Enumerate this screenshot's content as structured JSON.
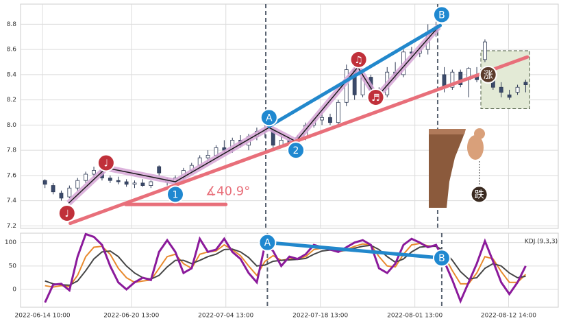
{
  "chart_data": [
    {
      "type": "candlestick",
      "xlim": [
        -3,
        63
      ],
      "xticks": [
        {
          "value": -0.3,
          "label": "2022-06-14 10:00"
        },
        {
          "value": 10.6,
          "label": "2022-06-20 13:00"
        },
        {
          "value": 22.2,
          "label": "2022-07-04 13:00"
        },
        {
          "value": 33.8,
          "label": "2022-07-18 13:00"
        },
        {
          "value": 45.4,
          "label": "2022-08-01 13:00"
        },
        {
          "value": 56.9,
          "label": "2022-08-12 14:00"
        }
      ],
      "ylim": [
        7.18,
        8.96
      ],
      "yticks": [
        7.2,
        7.4,
        7.6,
        7.8,
        {
          "value": 8,
          "label": "8.0"
        },
        8.2,
        8.4,
        8.6,
        8.8
      ],
      "grid": true,
      "up_color": "#ffffff",
      "down_color": "#3b4a6b",
      "edge_color": "#2e3a55",
      "open": [
        7.56,
        7.52,
        7.46,
        7.43,
        7.5,
        7.56,
        7.61,
        7.64,
        7.58,
        7.56,
        7.55,
        7.53,
        7.54,
        7.52,
        7.67,
        7.55,
        7.55,
        7.58,
        7.64,
        7.68,
        7.74,
        7.76,
        7.82,
        7.8,
        7.88,
        7.84,
        7.91,
        7.95,
        7.96,
        7.84,
        7.88,
        7.86,
        7.9,
        8.0,
        8.04,
        8.06,
        8.02,
        8.18,
        8.44,
        8.24,
        8.38,
        8.28,
        8.24,
        8.42,
        8.4,
        8.58,
        8.57,
        8.6,
        8.78,
        8.4,
        8.3,
        8.42,
        8.36,
        8.4,
        8.52,
        8.36,
        8.3,
        8.24,
        8.26,
        8.34
      ],
      "high": [
        7.57,
        7.54,
        7.48,
        7.52,
        7.58,
        7.63,
        7.67,
        7.66,
        7.6,
        7.59,
        7.57,
        7.56,
        7.57,
        7.56,
        7.68,
        7.58,
        7.6,
        7.66,
        7.7,
        7.76,
        7.8,
        7.84,
        7.88,
        7.9,
        7.92,
        7.93,
        7.98,
        8.02,
        7.98,
        7.92,
        7.9,
        7.92,
        8.02,
        8.06,
        8.1,
        8.09,
        8.2,
        8.48,
        8.46,
        8.4,
        8.4,
        8.3,
        8.46,
        8.5,
        8.6,
        8.62,
        8.62,
        8.8,
        8.82,
        8.46,
        8.44,
        8.44,
        8.46,
        8.46,
        8.68,
        8.4,
        8.34,
        8.28,
        8.32,
        8.36
      ],
      "low": [
        7.5,
        7.45,
        7.4,
        7.42,
        7.48,
        7.54,
        7.58,
        7.56,
        7.54,
        7.53,
        7.51,
        7.5,
        7.51,
        7.5,
        7.6,
        7.52,
        7.53,
        7.57,
        7.62,
        7.66,
        7.7,
        7.74,
        7.78,
        7.78,
        7.82,
        7.8,
        7.88,
        7.9,
        7.8,
        7.82,
        7.82,
        7.84,
        7.88,
        7.98,
        8.0,
        8.0,
        8.0,
        8.15,
        8.2,
        8.22,
        8.26,
        8.2,
        8.22,
        8.36,
        8.38,
        8.54,
        8.54,
        8.56,
        8.7,
        8.26,
        8.28,
        8.3,
        8.22,
        8.34,
        8.5,
        8.28,
        8.22,
        8.2,
        8.24,
        8.26
      ],
      "close": [
        7.53,
        7.47,
        7.42,
        7.5,
        7.56,
        7.61,
        7.64,
        7.58,
        7.56,
        7.55,
        7.53,
        7.54,
        7.52,
        7.55,
        7.62,
        7.56,
        7.58,
        7.64,
        7.68,
        7.74,
        7.76,
        7.82,
        7.8,
        7.88,
        7.84,
        7.91,
        7.95,
        7.96,
        7.84,
        7.88,
        7.86,
        7.9,
        8.0,
        8.04,
        8.06,
        8.02,
        8.18,
        8.44,
        8.24,
        8.38,
        8.28,
        8.24,
        8.42,
        8.4,
        8.58,
        8.57,
        8.6,
        8.72,
        8.74,
        8.3,
        8.42,
        8.32,
        8.45,
        8.36,
        8.66,
        8.3,
        8.26,
        8.22,
        8.3,
        8.32
      ],
      "vlines": [
        27.1,
        48.2
      ],
      "zigzag": {
        "x": [
          2.9,
          7.5,
          16.0,
          27.5,
          30.8,
          38.4,
          40.7,
          48.3
        ],
        "y": [
          7.38,
          7.66,
          7.55,
          7.98,
          7.87,
          8.46,
          8.22,
          8.78
        ],
        "color": "#1a1a1a",
        "band_color": "#d6a6d6"
      },
      "trendlines": [
        {
          "color": "#e86f7a",
          "points": [
            [
              3.1,
              7.22
            ],
            [
              59.2,
              8.54
            ]
          ]
        },
        {
          "color": "#2288cc",
          "points": [
            [
              27.5,
              7.99
            ],
            [
              48.5,
              8.79
            ]
          ]
        },
        {
          "color": "#e86f7a",
          "points": [
            [
              9.9,
              7.37
            ],
            [
              22.2,
              7.37
            ]
          ]
        }
      ],
      "angle_label": {
        "text": "∡40.9°",
        "x": 19.7,
        "y": 7.47,
        "color": "#e86f7a"
      },
      "box": {
        "x": [
          53.5,
          59.5
        ],
        "y": [
          8.13,
          8.59
        ]
      },
      "markers": [
        {
          "label": "♩",
          "x": 2.7,
          "y": 7.3,
          "color": "#c0303a"
        },
        {
          "label": "♩",
          "x": 7.5,
          "y": 7.7,
          "color": "#c0303a"
        },
        {
          "label": "1",
          "x": 16.0,
          "y": 7.45,
          "color": "#1f88d0"
        },
        {
          "label": "A",
          "x": 27.5,
          "y": 8.06,
          "color": "#1f88d0"
        },
        {
          "label": "2",
          "x": 30.8,
          "y": 7.8,
          "color": "#1f88d0"
        },
        {
          "label": "♫",
          "x": 38.5,
          "y": 8.52,
          "color": "#c0303a"
        },
        {
          "label": "♬",
          "x": 40.6,
          "y": 8.22,
          "color": "#c0303a"
        },
        {
          "label": "B",
          "x": 48.7,
          "y": 8.876,
          "color": "#1f88d0"
        },
        {
          "label": "涨",
          "x": 54.4,
          "y": 8.4,
          "color": "#5a3a2a"
        },
        {
          "label": "跌",
          "x": 53.3,
          "y": 7.45,
          "color": "#3a2a20"
        }
      ]
    },
    {
      "type": "line",
      "title": "KDJ (9,3,3)",
      "xlim": [
        -3,
        63
      ],
      "ylim": [
        -38,
        120
      ],
      "yticks": [
        0,
        50,
        100
      ],
      "grid": true,
      "series": [
        {
          "name": "K",
          "color": "#e8892c",
          "values": [
            8,
            5,
            8,
            6,
            30,
            70,
            90,
            92,
            75,
            45,
            25,
            15,
            18,
            20,
            45,
            70,
            75,
            55,
            45,
            75,
            80,
            82,
            95,
            85,
            72,
            50,
            30,
            60,
            72,
            62,
            65,
            66,
            70,
            85,
            88,
            85,
            80,
            85,
            92,
            97,
            95,
            70,
            50,
            48,
            75,
            95,
            98,
            93,
            92,
            72,
            40,
            12,
            12,
            35,
            70,
            65,
            38,
            15,
            15,
            32
          ]
        },
        {
          "name": "D",
          "color": "#444444",
          "values": [
            18,
            12,
            10,
            9,
            18,
            40,
            65,
            80,
            82,
            70,
            50,
            35,
            25,
            22,
            30,
            48,
            62,
            62,
            55,
            62,
            70,
            75,
            85,
            86,
            80,
            68,
            50,
            52,
            60,
            62,
            63,
            64,
            66,
            75,
            82,
            84,
            82,
            83,
            88,
            92,
            94,
            85,
            70,
            58,
            65,
            80,
            90,
            92,
            92,
            82,
            62,
            38,
            22,
            25,
            45,
            55,
            50,
            35,
            25,
            28
          ]
        },
        {
          "name": "J",
          "color": "#8b1a9b",
          "values": [
            -28,
            10,
            12,
            -2,
            70,
            118,
            112,
            95,
            50,
            15,
            0,
            15,
            25,
            20,
            80,
            105,
            80,
            35,
            45,
            108,
            80,
            85,
            108,
            80,
            65,
            35,
            15,
            95,
            82,
            50,
            70,
            65,
            75,
            95,
            90,
            85,
            80,
            90,
            100,
            105,
            95,
            45,
            35,
            55,
            95,
            108,
            100,
            90,
            95,
            60,
            20,
            -25,
            15,
            55,
            103,
            60,
            15,
            -10,
            15,
            50
          ]
        }
      ],
      "vlines": [
        27.3,
        48.7
      ],
      "trendlines": [
        {
          "color": "#2288cc",
          "points": [
            [
              27.3,
              100
            ],
            [
              48.7,
              67
            ]
          ]
        }
      ],
      "markers": [
        {
          "label": "A",
          "x": 27.3,
          "y": 100,
          "color": "#1f88d0"
        },
        {
          "label": "B",
          "x": 48.7,
          "y": 67,
          "color": "#1f88d0"
        }
      ]
    }
  ]
}
